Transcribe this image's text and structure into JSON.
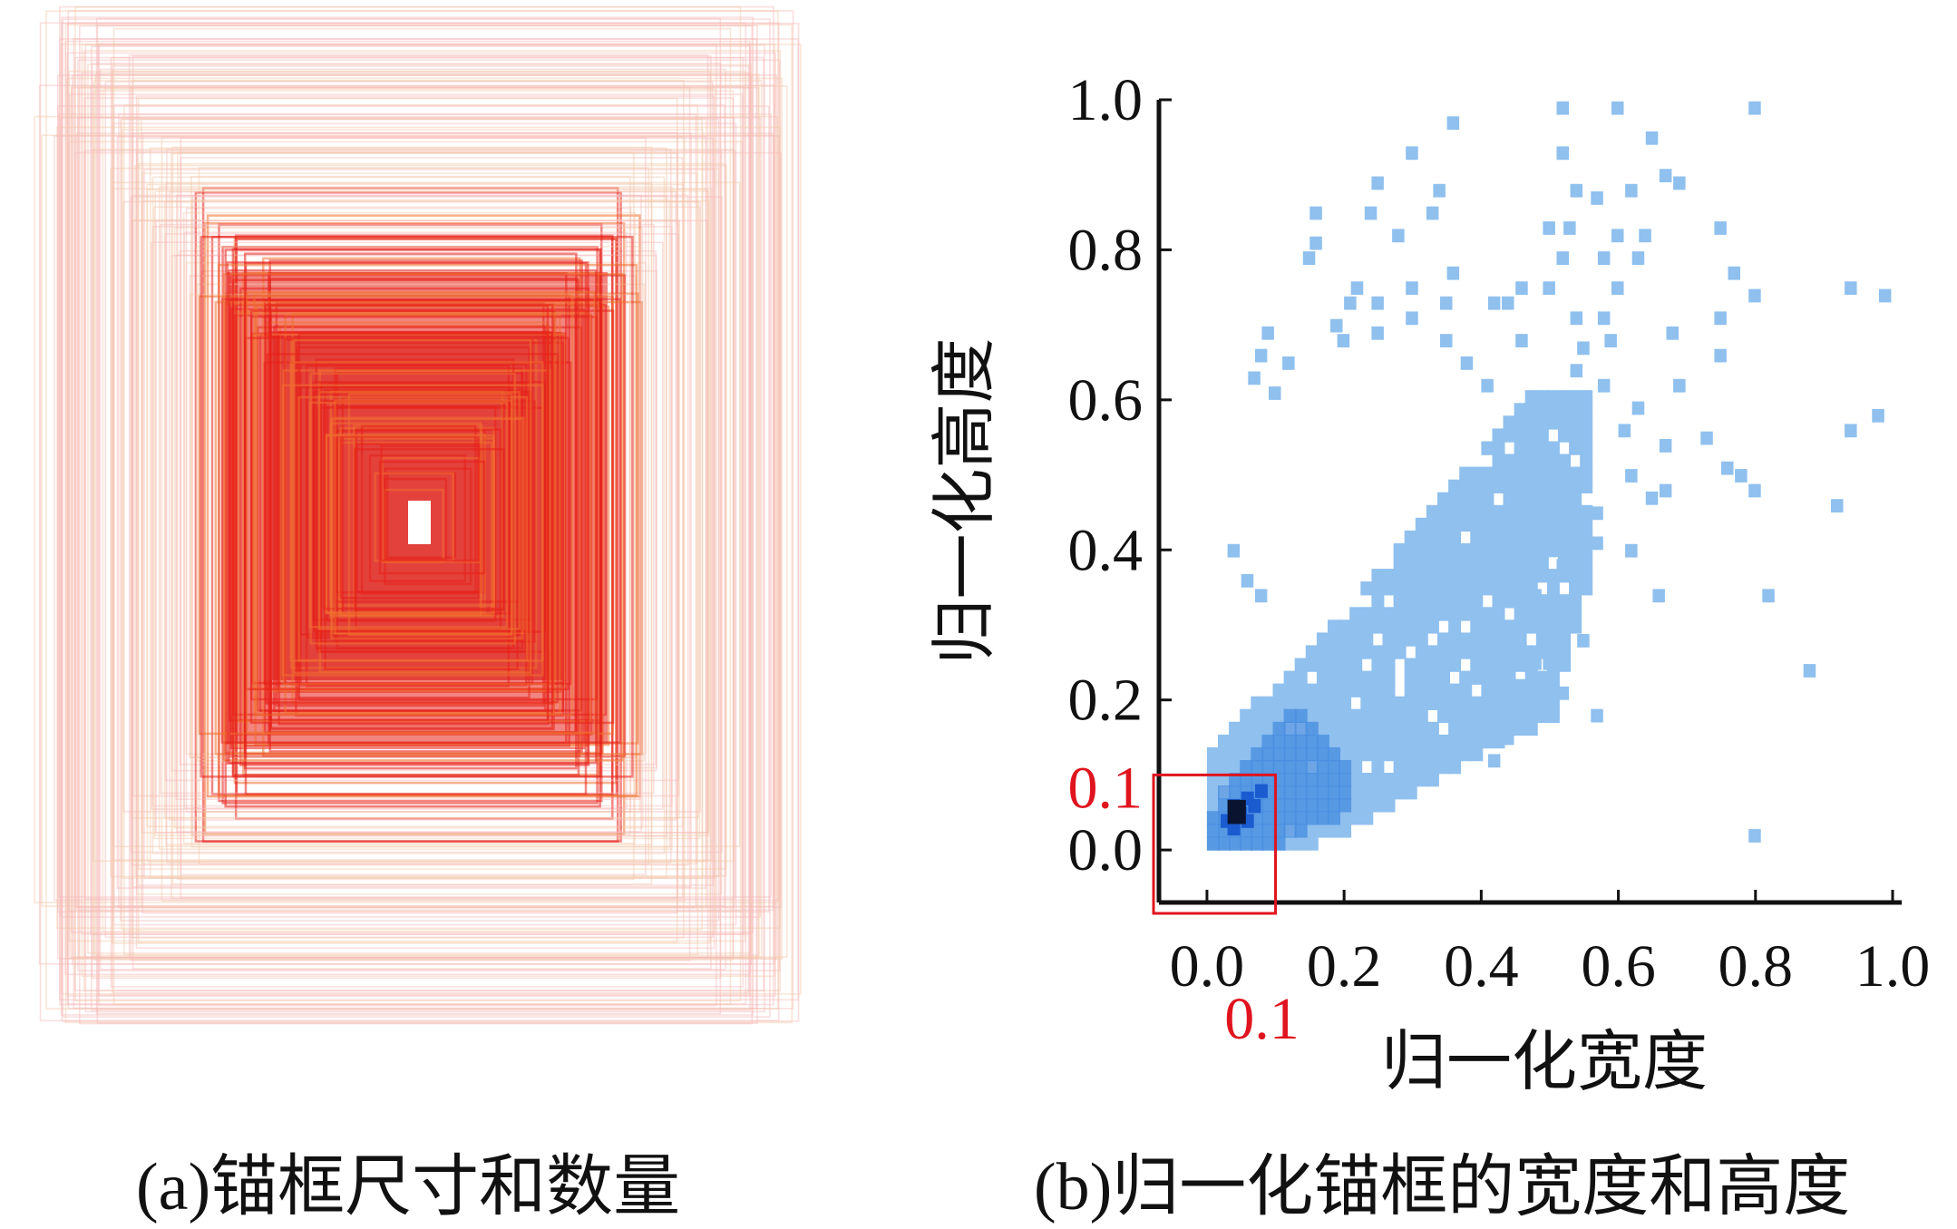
{
  "colors": {
    "anchor_core": "#e8201a",
    "anchor_mid": "#f07030",
    "anchor_faint": "#f6b7b7",
    "heat_light": "#8fc0ee",
    "heat_mid": "#4a8fe0",
    "heat_dark": "#1a5bd0",
    "heat_peak": "#0a1430",
    "highlight_red": "#e0141e",
    "axis": "#111111"
  },
  "captions": {
    "a": "(a)锚框尺寸和数量",
    "b": "(b)归一化锚框的宽度和高度"
  },
  "chart_data": [
    {
      "type": "other",
      "panel": "a",
      "description_label": "(a)锚框尺寸和数量",
      "anchor_boxes_aspect_ratio_hint": "boxes taller than wide, centered"
    },
    {
      "type": "heatmap",
      "panel": "b",
      "title": "",
      "xlabel": "归一化宽度",
      "ylabel": "归一化高度",
      "xlim": [
        -0.07,
        1.0
      ],
      "ylim": [
        -0.07,
        1.0
      ],
      "x_ticks": [
        "0.0",
        "0.2",
        "0.4",
        "0.6",
        "0.8",
        "1.0"
      ],
      "y_ticks": [
        "0.0",
        "0.2",
        "0.4",
        "0.6",
        "0.8",
        "1.0"
      ],
      "highlight_box": {
        "x_max": 0.1,
        "y_max": 0.1,
        "x_label": "0.1",
        "y_label": "0.1"
      },
      "density_peak": {
        "x": 0.03,
        "y": 0.04
      },
      "sparse_points": [
        [
          0.35,
          0.96
        ],
        [
          0.51,
          0.98
        ],
        [
          0.59,
          0.98
        ],
        [
          0.79,
          0.98
        ],
        [
          0.64,
          0.94
        ],
        [
          0.29,
          0.92
        ],
        [
          0.51,
          0.92
        ],
        [
          0.66,
          0.89
        ],
        [
          0.24,
          0.88
        ],
        [
          0.33,
          0.87
        ],
        [
          0.53,
          0.87
        ],
        [
          0.56,
          0.86
        ],
        [
          0.61,
          0.87
        ],
        [
          0.68,
          0.88
        ],
        [
          0.15,
          0.84
        ],
        [
          0.23,
          0.84
        ],
        [
          0.32,
          0.84
        ],
        [
          0.49,
          0.82
        ],
        [
          0.52,
          0.82
        ],
        [
          0.74,
          0.82
        ],
        [
          0.15,
          0.8
        ],
        [
          0.27,
          0.81
        ],
        [
          0.59,
          0.81
        ],
        [
          0.63,
          0.81
        ],
        [
          0.14,
          0.78
        ],
        [
          0.51,
          0.78
        ],
        [
          0.57,
          0.78
        ],
        [
          0.62,
          0.78
        ],
        [
          0.35,
          0.76
        ],
        [
          0.76,
          0.76
        ],
        [
          0.21,
          0.74
        ],
        [
          0.29,
          0.74
        ],
        [
          0.45,
          0.74
        ],
        [
          0.49,
          0.74
        ],
        [
          0.59,
          0.74
        ],
        [
          0.93,
          0.74
        ],
        [
          0.98,
          0.73
        ],
        [
          0.2,
          0.72
        ],
        [
          0.24,
          0.72
        ],
        [
          0.34,
          0.72
        ],
        [
          0.41,
          0.72
        ],
        [
          0.43,
          0.72
        ],
        [
          0.79,
          0.73
        ],
        [
          0.18,
          0.69
        ],
        [
          0.29,
          0.7
        ],
        [
          0.53,
          0.7
        ],
        [
          0.57,
          0.7
        ],
        [
          0.74,
          0.7
        ],
        [
          0.08,
          0.68
        ],
        [
          0.19,
          0.67
        ],
        [
          0.24,
          0.68
        ],
        [
          0.34,
          0.67
        ],
        [
          0.45,
          0.67
        ],
        [
          0.54,
          0.66
        ],
        [
          0.58,
          0.67
        ],
        [
          0.67,
          0.68
        ],
        [
          0.07,
          0.65
        ],
        [
          0.11,
          0.64
        ],
        [
          0.37,
          0.64
        ],
        [
          0.53,
          0.63
        ],
        [
          0.74,
          0.65
        ],
        [
          0.4,
          0.61
        ],
        [
          0.57,
          0.61
        ],
        [
          0.68,
          0.61
        ],
        [
          0.06,
          0.62
        ],
        [
          0.09,
          0.6
        ],
        [
          0.62,
          0.58
        ],
        [
          0.97,
          0.57
        ],
        [
          0.93,
          0.55
        ],
        [
          0.6,
          0.55
        ],
        [
          0.72,
          0.54
        ],
        [
          0.46,
          0.52
        ],
        [
          0.66,
          0.53
        ],
        [
          0.75,
          0.5
        ],
        [
          0.61,
          0.49
        ],
        [
          0.77,
          0.49
        ],
        [
          0.79,
          0.47
        ],
        [
          0.64,
          0.46
        ],
        [
          0.66,
          0.47
        ],
        [
          0.91,
          0.45
        ],
        [
          0.48,
          0.44
        ],
        [
          0.56,
          0.44
        ],
        [
          0.51,
          0.41
        ],
        [
          0.56,
          0.4
        ],
        [
          0.61,
          0.39
        ],
        [
          0.03,
          0.39
        ],
        [
          0.51,
          0.37
        ],
        [
          0.05,
          0.35
        ],
        [
          0.54,
          0.35
        ],
        [
          0.07,
          0.33
        ],
        [
          0.47,
          0.33
        ],
        [
          0.65,
          0.33
        ],
        [
          0.81,
          0.33
        ],
        [
          0.48,
          0.3
        ],
        [
          0.51,
          0.29
        ],
        [
          0.54,
          0.27
        ],
        [
          0.87,
          0.23
        ],
        [
          0.47,
          0.24
        ],
        [
          0.49,
          0.24
        ],
        [
          0.43,
          0.22
        ],
        [
          0.45,
          0.21
        ],
        [
          0.48,
          0.21
        ],
        [
          0.51,
          0.2
        ],
        [
          0.56,
          0.17
        ],
        [
          0.36,
          0.19
        ],
        [
          0.38,
          0.16
        ],
        [
          0.43,
          0.14
        ],
        [
          0.41,
          0.11
        ],
        [
          0.79,
          0.01
        ]
      ]
    }
  ]
}
